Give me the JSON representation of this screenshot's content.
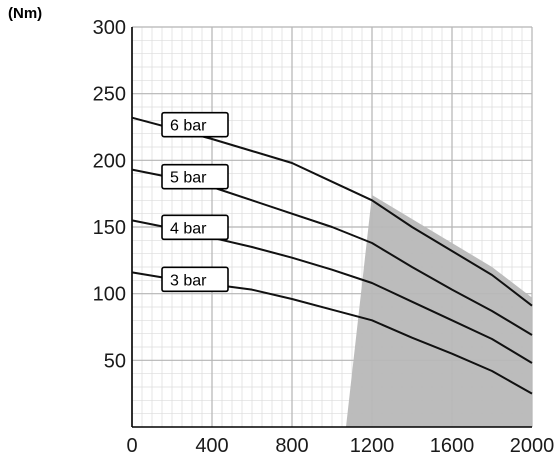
{
  "chart_data": {
    "type": "line",
    "title": "",
    "xlabel": "",
    "ylabel": "(Nm)",
    "xlim": [
      0,
      2000
    ],
    "ylim": [
      0,
      300
    ],
    "x_ticks": [
      0,
      400,
      800,
      1200,
      1600,
      2000
    ],
    "y_ticks": [
      50,
      100,
      150,
      200,
      250,
      300
    ],
    "grid": "on",
    "series": [
      {
        "name": "6 bar",
        "points": [
          [
            0,
            232
          ],
          [
            200,
            224
          ],
          [
            400,
            216
          ],
          [
            600,
            207
          ],
          [
            800,
            198
          ],
          [
            1000,
            184
          ],
          [
            1200,
            170
          ],
          [
            1400,
            150
          ],
          [
            1600,
            132
          ],
          [
            1800,
            114
          ],
          [
            2000,
            91
          ]
        ]
      },
      {
        "name": "5 bar",
        "points": [
          [
            0,
            193
          ],
          [
            200,
            187
          ],
          [
            400,
            180
          ],
          [
            600,
            170
          ],
          [
            800,
            160
          ],
          [
            1000,
            150
          ],
          [
            1200,
            138
          ],
          [
            1400,
            120
          ],
          [
            1600,
            103
          ],
          [
            1800,
            87
          ],
          [
            2000,
            69
          ]
        ]
      },
      {
        "name": "4 bar",
        "points": [
          [
            0,
            155
          ],
          [
            200,
            149
          ],
          [
            400,
            142
          ],
          [
            600,
            135
          ],
          [
            800,
            127
          ],
          [
            1000,
            118
          ],
          [
            1200,
            108
          ],
          [
            1400,
            94
          ],
          [
            1600,
            80
          ],
          [
            1800,
            66
          ],
          [
            2000,
            48
          ]
        ]
      },
      {
        "name": "3 bar",
        "points": [
          [
            0,
            116
          ],
          [
            200,
            111
          ],
          [
            400,
            107
          ],
          [
            600,
            103
          ],
          [
            800,
            96
          ],
          [
            1000,
            88
          ],
          [
            1200,
            80
          ],
          [
            1400,
            67
          ],
          [
            1600,
            55
          ],
          [
            1800,
            42
          ],
          [
            2000,
            25
          ]
        ]
      }
    ],
    "shaded_region": {
      "color": "#b8b8b8",
      "upper_boundary": [
        [
          1200,
          174
        ],
        [
          1400,
          156
        ],
        [
          1600,
          138
        ],
        [
          1800,
          120
        ],
        [
          2000,
          97
        ]
      ],
      "left_boundary": [
        [
          1200,
          174
        ],
        [
          1070,
          0
        ]
      ]
    }
  },
  "colors": {
    "axis": "#000000",
    "major_grid": "#b5b5b5",
    "minor_grid": "#dcdcdc",
    "line": "#111111",
    "shade": "#b8b8b8"
  }
}
